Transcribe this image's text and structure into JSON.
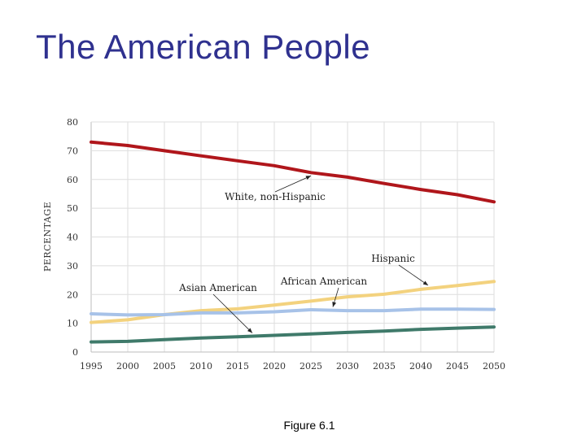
{
  "slide": {
    "title": "The American People",
    "caption": "Figure 6.1"
  },
  "chart_data": {
    "type": "line",
    "title": "",
    "xlabel": "",
    "ylabel": "PERCENTAGE",
    "x": [
      1995,
      2000,
      2005,
      2010,
      2015,
      2020,
      2025,
      2030,
      2035,
      2040,
      2045,
      2050
    ],
    "x_tick_labels": [
      "1995",
      "2000",
      "2005",
      "2010",
      "2015",
      "2020",
      "2025",
      "2030",
      "2035",
      "2040",
      "2045",
      "2050"
    ],
    "ylim": [
      0,
      80
    ],
    "y_ticks": [
      0,
      10,
      20,
      30,
      40,
      50,
      60,
      70,
      80
    ],
    "y_tick_labels": [
      "0",
      "10",
      "20",
      "30",
      "40",
      "50",
      "60",
      "70",
      "80"
    ],
    "grid": true,
    "series": [
      {
        "name": "White, non-Hispanic",
        "color": "#b0161b",
        "values": [
          73,
          71.8,
          70,
          68.2,
          66.5,
          64.8,
          62.4,
          60.8,
          58.6,
          56.5,
          54.7,
          52.2
        ]
      },
      {
        "name": "Hispanic",
        "color": "#f3d27e",
        "values": [
          10.3,
          11.2,
          13,
          14.4,
          15,
          16.3,
          17.7,
          19.2,
          20.1,
          21.8,
          23.1,
          24.5
        ]
      },
      {
        "name": "African American",
        "color": "#a7c2e8",
        "values": [
          13.3,
          12.9,
          13,
          13.6,
          13.6,
          14,
          14.7,
          14.4,
          14.4,
          14.9,
          14.9,
          14.8
        ]
      },
      {
        "name": "Asian American",
        "color": "#3f7a6a",
        "values": [
          3.5,
          3.7,
          4.3,
          4.9,
          5.3,
          5.8,
          6.3,
          6.8,
          7.3,
          7.9,
          8.3,
          8.7
        ]
      }
    ],
    "annotations": [
      {
        "text": "White, non-Hispanic",
        "series": "White, non-Hispanic",
        "x": 2025
      },
      {
        "text": "Hispanic",
        "series": "Hispanic",
        "x": 2041
      },
      {
        "text": "African American",
        "series": "African American",
        "x": 2028
      },
      {
        "text": "Asian American",
        "series": "Asian American",
        "x": 2017
      }
    ]
  }
}
